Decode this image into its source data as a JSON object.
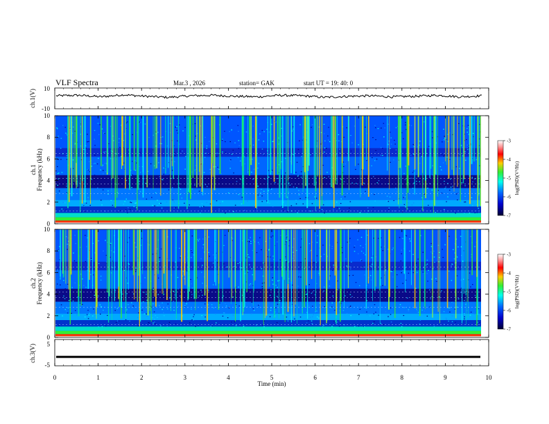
{
  "header": {
    "title": "VLF Spectra",
    "date": "Mar.3  , 2026",
    "station": "station= GAK",
    "start": "start UT =  19: 40: 0"
  },
  "colors": {
    "background": "#ffffff",
    "trace": "#000000",
    "colormap": [
      "#ffffff",
      "#ff9999",
      "#ff0000",
      "#ffcc00",
      "#33ee33",
      "#00ffee",
      "#0066ff",
      "#0000cc",
      "#000055"
    ]
  },
  "chart_data": [
    {
      "type": "line",
      "ylabel": "ch.1(V)",
      "ylim": [
        -10,
        10
      ],
      "yticks": [
        "10",
        "-10"
      ],
      "xlim": [
        0,
        10
      ],
      "description_of_series": "waveform",
      "series": [
        {
          "values": [
            2.5,
            3.0,
            1.5,
            3.5,
            2.0,
            1.0,
            2.5,
            3.0,
            2.0,
            1.5,
            3.0,
            2.5,
            1.0,
            2.0,
            2.5,
            1.5,
            2.0,
            3.0,
            1.5,
            2.5
          ]
        }
      ]
    },
    {
      "type": "heatmap",
      "ylabel_1": "ch.1",
      "ylabel_2": "Frequency (kHz)",
      "xlim": [
        0,
        10
      ],
      "ylim": [
        0,
        10
      ],
      "yticks": [
        "0",
        "2",
        "4",
        "6",
        "8",
        "10"
      ],
      "colorbar": {
        "label": "log(PSD)(V²/Hz)",
        "ticks": [
          "-3",
          "-4",
          "-5",
          "-6",
          "-7"
        ],
        "range": [
          -7,
          -3
        ]
      }
    },
    {
      "type": "heatmap",
      "ylabel_1": "ch.2",
      "ylabel_2": "Frequency (kHz)",
      "xlim": [
        0,
        10
      ],
      "ylim": [
        0,
        10
      ],
      "yticks": [
        "0",
        "2",
        "4",
        "6",
        "8",
        "10"
      ],
      "colorbar": {
        "label": "log(PSD)(V²/Hz)",
        "ticks": [
          "-3",
          "-4",
          "-5",
          "-6",
          "-7"
        ],
        "range": [
          -7,
          -3
        ]
      }
    },
    {
      "type": "line",
      "ylabel": "ch.3(V)",
      "ylim": [
        -5,
        5
      ],
      "yticks": [
        "5",
        "-5"
      ],
      "xlim": [
        0,
        10
      ],
      "xlabel": "Time  (min)",
      "xticks": [
        "0",
        "1",
        "2",
        "3",
        "4",
        "5",
        "6",
        "7",
        "8",
        "9",
        "10"
      ],
      "series": [
        {
          "values": [
            -1.6,
            -1.6,
            -1.6,
            -1.6,
            -1.6,
            -1.6,
            -1.6,
            -1.6,
            -1.6,
            -1.6,
            -1.6
          ]
        }
      ]
    }
  ]
}
